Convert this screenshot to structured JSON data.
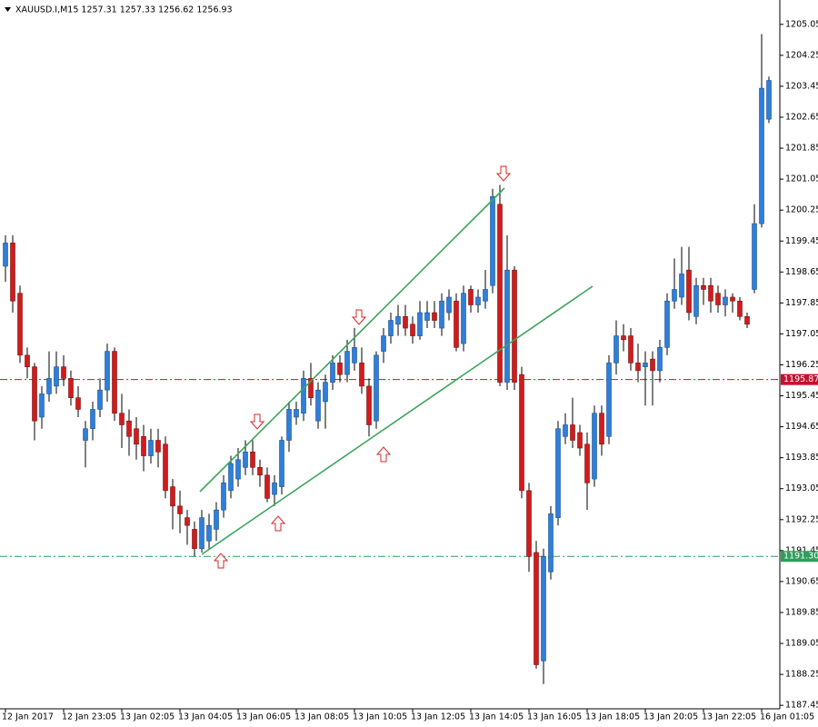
{
  "chart_data": {
    "type": "candlestick",
    "title": "XAUUSD.I,M15  1257.31 1257.33 1256.62 1256.93",
    "ylim": [
      1187.36,
      1205.68
    ],
    "yticks": [
      1205.05,
      1204.25,
      1203.45,
      1202.65,
      1201.85,
      1201.05,
      1200.25,
      1199.45,
      1198.65,
      1197.85,
      1197.05,
      1196.25,
      1195.45,
      1194.65,
      1193.85,
      1193.05,
      1192.25,
      1191.45,
      1190.65,
      1189.85,
      1189.05,
      1188.25,
      1187.45
    ],
    "grid": false,
    "up_color": "#2f7fd8",
    "down_color": "#d01c1c",
    "levels": [
      {
        "value": 1195.87,
        "color": "#c8102e"
      },
      {
        "value": {
          "value": 1191.3,
          "label": "1191.30"
        },
        "color": "#2e9e5a"
      }
    ],
    "categories": [
      "12 Jan 2017",
      null,
      null,
      null,
      null,
      null,
      null,
      null,
      "12 Jan 23:05",
      null,
      null,
      null,
      null,
      null,
      null,
      null,
      "13 Jan 02:05",
      null,
      null,
      null,
      null,
      null,
      null,
      null,
      "13 Jan 04:05",
      null,
      null,
      null,
      null,
      null,
      null,
      null,
      "13 Jan 06:05",
      null,
      null,
      null,
      null,
      null,
      null,
      null,
      "13 Jan 08:05",
      null,
      null,
      null,
      null,
      null,
      null,
      null,
      "13 Jan 10:05",
      null,
      null,
      null,
      null,
      null,
      null,
      null,
      "13 Jan 12:05",
      null,
      null,
      null,
      null,
      null,
      null,
      null,
      "13 Jan 14:05",
      null,
      null,
      null,
      null,
      null,
      null,
      null,
      "13 Jan 16:05",
      null,
      null,
      null,
      null,
      null,
      null,
      null,
      "13 Jan 18:05",
      null,
      null,
      null,
      null,
      null,
      null,
      null,
      "13 Jan 20:05",
      null,
      null,
      null,
      null,
      null,
      null,
      null,
      "13 Jan 22:05",
      null,
      null,
      null,
      null,
      null,
      null,
      null,
      "16 Jan 01:05",
      null
    ],
    "ohlc": [
      [
        1198.8,
        1199.6,
        1198.4,
        1199.4
      ],
      [
        1199.4,
        1199.6,
        1197.6,
        1197.9
      ],
      [
        1198.1,
        1198.3,
        1196.3,
        1196.5
      ],
      [
        1196.5,
        1196.7,
        1195.9,
        1196.2
      ],
      [
        1196.2,
        1196.3,
        1194.3,
        1194.8
      ],
      [
        1194.9,
        1195.7,
        1194.6,
        1195.5
      ],
      [
        1195.5,
        1196.6,
        1195.3,
        1195.9
      ],
      [
        1195.7,
        1196.6,
        1195.5,
        1196.2
      ],
      [
        1196.2,
        1196.5,
        1195.7,
        1195.9
      ],
      [
        1195.9,
        1196.1,
        1195.2,
        1195.4
      ],
      [
        1195.4,
        1195.7,
        1194.9,
        1195.1
      ],
      [
        1194.3,
        1194.8,
        1193.6,
        1194.6
      ],
      [
        1194.6,
        1195.3,
        1194.3,
        1195.1
      ],
      [
        1195.1,
        1195.9,
        1194.9,
        1195.6
      ],
      [
        1195.6,
        1196.8,
        1195.3,
        1196.6
      ],
      [
        1196.6,
        1196.7,
        1194.8,
        1195.0
      ],
      [
        1195.0,
        1195.5,
        1194.1,
        1194.7
      ],
      [
        1194.8,
        1195.1,
        1193.9,
        1194.4
      ],
      [
        1194.6,
        1194.9,
        1193.8,
        1194.2
      ],
      [
        1194.4,
        1194.7,
        1193.5,
        1193.9
      ],
      [
        1193.9,
        1194.6,
        1193.7,
        1194.3
      ],
      [
        1194.3,
        1194.6,
        1193.6,
        1194.0
      ],
      [
        1194.2,
        1194.4,
        1192.8,
        1193.0
      ],
      [
        1193.1,
        1193.3,
        1192.0,
        1192.6
      ],
      [
        1192.6,
        1193.0,
        1191.9,
        1192.4
      ],
      [
        1192.3,
        1192.5,
        1191.6,
        1192.1
      ],
      [
        1192.0,
        1192.2,
        1191.3,
        1191.5
      ],
      [
        1191.5,
        1192.5,
        1191.4,
        1192.3
      ],
      [
        1191.7,
        1192.4,
        1191.5,
        1192.1
      ],
      [
        1192.0,
        1192.7,
        1191.7,
        1192.5
      ],
      [
        1192.5,
        1193.4,
        1192.3,
        1193.2
      ],
      [
        1193.0,
        1193.9,
        1192.8,
        1193.7
      ],
      [
        1193.3,
        1194.1,
        1193.1,
        1193.8
      ],
      [
        1193.6,
        1194.3,
        1193.4,
        1194.0
      ],
      [
        1194.0,
        1194.3,
        1193.4,
        1193.6
      ],
      [
        1193.6,
        1193.8,
        1193.1,
        1193.4
      ],
      [
        1193.4,
        1193.6,
        1192.7,
        1192.8
      ],
      [
        1192.9,
        1193.4,
        1192.6,
        1193.2
      ],
      [
        1193.1,
        1194.4,
        1192.9,
        1194.3
      ],
      [
        1194.3,
        1195.3,
        1194.0,
        1195.1
      ],
      [
        1194.9,
        1195.3,
        1194.7,
        1195.1
      ],
      [
        1195.0,
        1196.1,
        1194.8,
        1195.9
      ],
      [
        1195.9,
        1196.3,
        1195.2,
        1195.4
      ],
      [
        1194.8,
        1195.8,
        1194.6,
        1195.6
      ],
      [
        1195.3,
        1196.0,
        1194.6,
        1195.8
      ],
      [
        1195.8,
        1196.5,
        1195.6,
        1196.3
      ],
      [
        1196.3,
        1196.5,
        1195.8,
        1196.0
      ],
      [
        1196.0,
        1196.9,
        1195.8,
        1196.6
      ],
      [
        1196.3,
        1197.2,
        1196.1,
        1196.7
      ],
      [
        1196.3,
        1196.7,
        1195.5,
        1195.7
      ],
      [
        1195.7,
        1195.9,
        1194.4,
        1194.7
      ],
      [
        1194.8,
        1196.6,
        1194.6,
        1196.5
      ],
      [
        1196.6,
        1197.2,
        1196.3,
        1197.0
      ],
      [
        1197.0,
        1197.6,
        1196.8,
        1197.4
      ],
      [
        1197.3,
        1197.8,
        1197.0,
        1197.5
      ],
      [
        1197.5,
        1197.8,
        1197.0,
        1197.2
      ],
      [
        1197.3,
        1197.5,
        1196.8,
        1197.0
      ],
      [
        1197.0,
        1197.9,
        1196.9,
        1197.6
      ],
      [
        1197.4,
        1197.9,
        1197.2,
        1197.6
      ],
      [
        1197.6,
        1197.9,
        1197.2,
        1197.4
      ],
      [
        1197.2,
        1198.1,
        1197.0,
        1197.9
      ],
      [
        1197.6,
        1198.2,
        1197.4,
        1198.0
      ],
      [
        1197.9,
        1198.1,
        1196.6,
        1196.7
      ],
      [
        1196.8,
        1198.3,
        1196.6,
        1198.1
      ],
      [
        1198.2,
        1198.3,
        1197.6,
        1197.8
      ],
      [
        1197.8,
        1198.2,
        1197.6,
        1198.0
      ],
      [
        1197.9,
        1198.7,
        1197.7,
        1198.2
      ],
      [
        1198.3,
        1200.8,
        1198.1,
        1200.6
      ],
      [
        1200.4,
        1200.9,
        1195.7,
        1195.8
      ],
      [
        1195.8,
        1199.6,
        1195.6,
        1198.7
      ],
      [
        1198.7,
        1198.8,
        1195.6,
        1195.8
      ],
      [
        1196.0,
        1196.2,
        1192.8,
        1193.0
      ],
      [
        1193.0,
        1193.2,
        1190.9,
        1191.3
      ],
      [
        1191.4,
        1191.7,
        1188.4,
        1188.5
      ],
      [
        1188.6,
        1191.5,
        1188.0,
        1191.3
      ],
      [
        1190.9,
        1192.6,
        1190.7,
        1192.4
      ],
      [
        1192.3,
        1194.8,
        1192.1,
        1194.6
      ],
      [
        1194.4,
        1195.0,
        1194.2,
        1194.7
      ],
      [
        1194.7,
        1195.4,
        1194.1,
        1194.3
      ],
      [
        1194.5,
        1194.7,
        1193.9,
        1194.1
      ],
      [
        1194.2,
        1194.5,
        1192.5,
        1193.2
      ],
      [
        1193.3,
        1195.2,
        1193.1,
        1195.0
      ],
      [
        1195.0,
        1195.2,
        1193.9,
        1194.2
      ],
      [
        1194.4,
        1196.5,
        1194.2,
        1196.3
      ],
      [
        1196.3,
        1197.4,
        1196.0,
        1197.0
      ],
      [
        1197.0,
        1197.3,
        1196.6,
        1196.9
      ],
      [
        1197.0,
        1197.2,
        1196.1,
        1196.3
      ],
      [
        1196.3,
        1196.8,
        1195.8,
        1196.1
      ],
      [
        1196.2,
        1196.6,
        1195.2,
        1196.3
      ],
      [
        1196.4,
        1196.6,
        1195.2,
        1196.1
      ],
      [
        1196.1,
        1196.9,
        1195.8,
        1196.7
      ],
      [
        1196.7,
        1198.1,
        1196.5,
        1197.9
      ],
      [
        1197.9,
        1199.0,
        1197.7,
        1198.2
      ],
      [
        1198.0,
        1199.3,
        1197.8,
        1198.6
      ],
      [
        1198.7,
        1199.3,
        1197.4,
        1197.6
      ],
      [
        1197.5,
        1198.5,
        1197.3,
        1198.3
      ],
      [
        1198.3,
        1198.5,
        1197.8,
        1198.2
      ],
      [
        1198.3,
        1198.5,
        1197.6,
        1197.9
      ],
      [
        1198.1,
        1198.3,
        1197.6,
        1197.8
      ],
      [
        1197.8,
        1198.2,
        1197.5,
        1198.0
      ],
      [
        1198.0,
        1198.1,
        1197.6,
        1197.9
      ],
      [
        1197.9,
        1198.0,
        1197.4,
        1197.5
      ],
      [
        1197.5,
        1197.6,
        1197.2,
        1197.3
      ],
      [
        1198.2,
        1200.4,
        1198.1,
        1199.9
      ],
      [
        1199.9,
        1204.8,
        1199.8,
        1203.4
      ],
      [
        1202.6,
        1203.7,
        1202.5,
        1203.6
      ]
    ]
  }
}
